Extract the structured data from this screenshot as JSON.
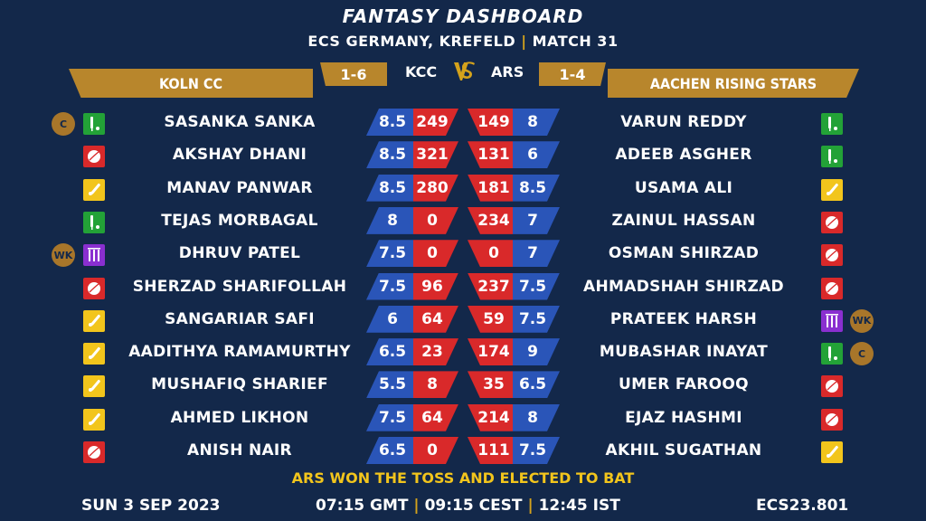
{
  "header": {
    "title": "FANTASY DASHBOARD",
    "competition": "ECS GERMANY, KREFELD",
    "separator": "|",
    "match": "MATCH 31"
  },
  "teams": {
    "left": {
      "name": "KOLN CC",
      "abbr": "KCC",
      "record": "1-6"
    },
    "right": {
      "name": "AACHEN RISING STARS",
      "abbr": "ARS",
      "record": "1-4"
    },
    "vs": "VS"
  },
  "colors": {
    "background": "#13284a",
    "gold": "#b8862c",
    "credit_blue": "#2a55b8",
    "points_red": "#d9292a",
    "toss_yellow": "#f2c51c"
  },
  "left_players": [
    {
      "name": "SASANKA SANKA",
      "role": "batter",
      "badge": "C",
      "credits": "8.5",
      "points": "249"
    },
    {
      "name": "AKSHAY DHANI",
      "role": "bowler",
      "badge": "",
      "credits": "8.5",
      "points": "321"
    },
    {
      "name": "MANAV PANWAR",
      "role": "allrounder",
      "badge": "",
      "credits": "8.5",
      "points": "280"
    },
    {
      "name": "TEJAS MORBAGAL",
      "role": "batter",
      "badge": "",
      "credits": "8",
      "points": "0"
    },
    {
      "name": "DHRUV PATEL",
      "role": "wicketkeeper",
      "badge": "WK",
      "credits": "7.5",
      "points": "0"
    },
    {
      "name": "SHERZAD SHARIFOLLAH",
      "role": "bowler",
      "badge": "",
      "credits": "7.5",
      "points": "96"
    },
    {
      "name": "SANGARIAR SAFI",
      "role": "allrounder",
      "badge": "",
      "credits": "6",
      "points": "64"
    },
    {
      "name": "AADITHYA RAMAMURTHY",
      "role": "allrounder",
      "badge": "",
      "credits": "6.5",
      "points": "23"
    },
    {
      "name": "MUSHAFIQ SHARIEF",
      "role": "allrounder",
      "badge": "",
      "credits": "5.5",
      "points": "8"
    },
    {
      "name": "AHMED LIKHON",
      "role": "allrounder",
      "badge": "",
      "credits": "7.5",
      "points": "64"
    },
    {
      "name": "ANISH NAIR",
      "role": "bowler",
      "badge": "",
      "credits": "6.5",
      "points": "0"
    }
  ],
  "right_players": [
    {
      "name": "VARUN REDDY",
      "role": "batter",
      "badge": "",
      "credits": "8",
      "points": "149"
    },
    {
      "name": "ADEEB ASGHER",
      "role": "batter",
      "badge": "",
      "credits": "6",
      "points": "131"
    },
    {
      "name": "USAMA ALI",
      "role": "allrounder",
      "badge": "",
      "credits": "8.5",
      "points": "181"
    },
    {
      "name": "ZAINUL HASSAN",
      "role": "bowler",
      "badge": "",
      "credits": "7",
      "points": "234"
    },
    {
      "name": "OSMAN SHIRZAD",
      "role": "bowler",
      "badge": "",
      "credits": "7",
      "points": "0"
    },
    {
      "name": "AHMADSHAH SHIRZAD",
      "role": "bowler",
      "badge": "",
      "credits": "7.5",
      "points": "237"
    },
    {
      "name": "PRATEEK HARSH",
      "role": "wicketkeeper",
      "badge": "WK",
      "credits": "7.5",
      "points": "59"
    },
    {
      "name": "MUBASHAR INAYAT",
      "role": "batter",
      "badge": "C",
      "credits": "9",
      "points": "174"
    },
    {
      "name": "UMER FAROOQ",
      "role": "bowler",
      "badge": "",
      "credits": "6.5",
      "points": "35"
    },
    {
      "name": "EJAZ HASHMI",
      "role": "bowler",
      "badge": "",
      "credits": "8",
      "points": "214"
    },
    {
      "name": "AKHIL SUGATHAN",
      "role": "allrounder",
      "badge": "",
      "credits": "7.5",
      "points": "111"
    }
  ],
  "footer": {
    "toss": "ARS WON THE TOSS AND ELECTED TO BAT",
    "date": "SUN 3 SEP 2023",
    "time_gmt": "07:15 GMT",
    "time_cest": "09:15 CEST",
    "time_ist": "12:45 IST",
    "separator": "|",
    "code": "ECS23.801"
  }
}
